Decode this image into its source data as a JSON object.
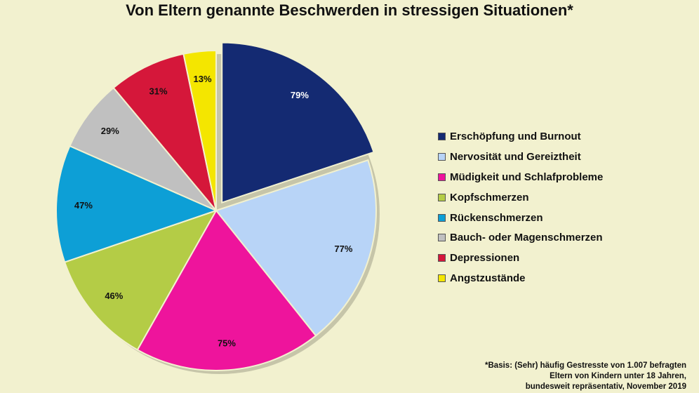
{
  "chart_data": {
    "type": "pie",
    "title": "Von Eltern genannte Beschwerden in stressigen Situationen*",
    "categories": [
      "Erschöpfung und Burnout",
      "Nervosität und Gereiztheit",
      "Müdigkeit und Schlafprobleme",
      "Kopfschmerzen",
      "Rückenschmerzen",
      "Bauch- oder Magenschmerzen",
      "Depressionen",
      "Angstzustände"
    ],
    "values": [
      79,
      77,
      75,
      46,
      47,
      29,
      31,
      13
    ],
    "labels": [
      "79%",
      "77%",
      "75%",
      "46%",
      "47%",
      "29%",
      "31%",
      "13%"
    ],
    "colors": [
      "#142a72",
      "#b8d4f7",
      "#ee149c",
      "#b4cc46",
      "#0d9fd6",
      "#c0c0c0",
      "#d5173a",
      "#f4e600"
    ],
    "label_colors": [
      "#ffffff",
      "#111111",
      "#111111",
      "#111111",
      "#111111",
      "#111111",
      "#111111",
      "#111111"
    ],
    "exploded": "Erschöpfung und Burnout",
    "legend_position": "right"
  },
  "footnote": [
    "*Basis: (Sehr) häufig Gestresste von 1.007 befragten",
    "Eltern von Kindern unter 18 Jahren,",
    "bundesweit repräsentativ, November 2019"
  ]
}
